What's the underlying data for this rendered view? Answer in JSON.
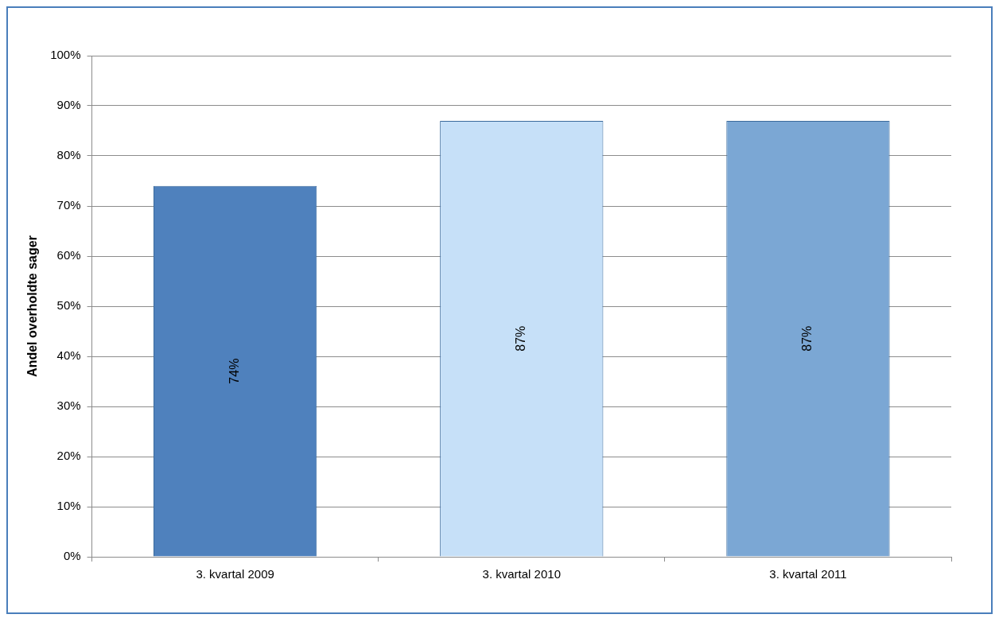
{
  "chart_data": {
    "type": "bar",
    "ylabel": "Andel overholdte sager",
    "categories": [
      "3. kvartal 2009",
      "3. kvartal 2010",
      "3. kvartal 2011"
    ],
    "values": [
      74,
      87,
      87
    ],
    "colors": [
      "#4f81bd",
      "#c6e0f8",
      "#7ba7d4"
    ],
    "value_labels": [
      "74%",
      "87%",
      "87%"
    ],
    "ylim": [
      0,
      100
    ],
    "yticks": [
      {
        "value": 0,
        "label": "0%"
      },
      {
        "value": 10,
        "label": "10%"
      },
      {
        "value": 20,
        "label": "20%"
      },
      {
        "value": 30,
        "label": "30%"
      },
      {
        "value": 40,
        "label": "40%"
      },
      {
        "value": 50,
        "label": "50%"
      },
      {
        "value": 60,
        "label": "60%"
      },
      {
        "value": 70,
        "label": "70%"
      },
      {
        "value": 80,
        "label": "80%"
      },
      {
        "value": 90,
        "label": "90%"
      },
      {
        "value": 100,
        "label": "100%"
      }
    ],
    "grid": "y",
    "legend": false
  }
}
